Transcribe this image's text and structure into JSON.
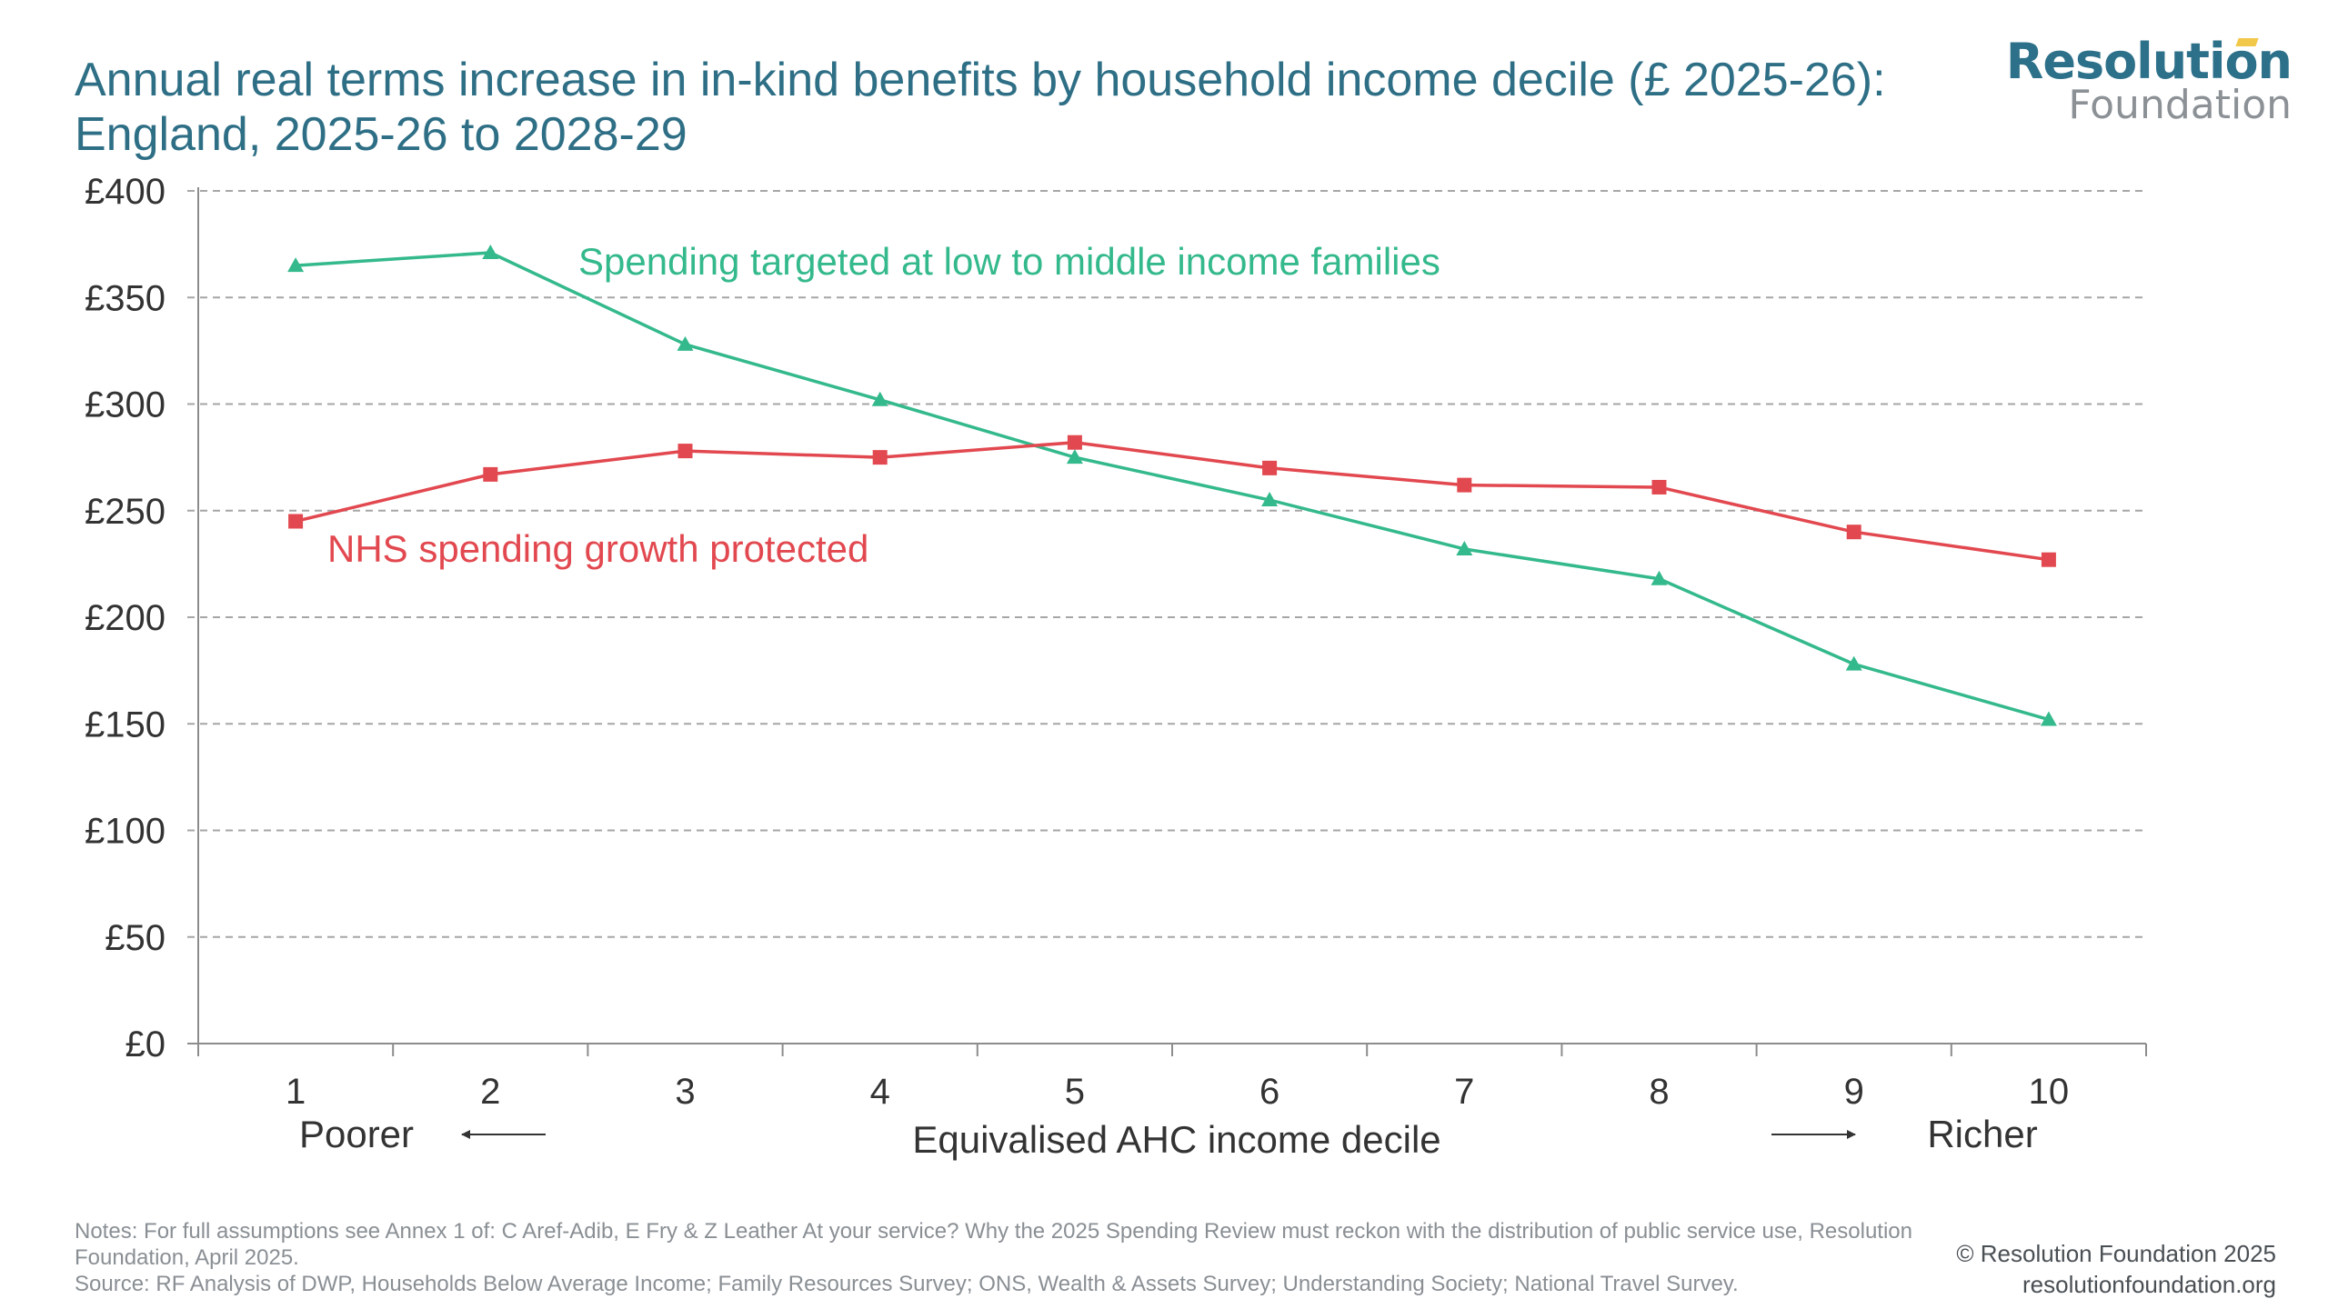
{
  "title": "Annual real terms increase in in-kind benefits by household income decile (£ 2025-26): England, 2025-26 to 2028-29",
  "logo": {
    "line1": "Resolution",
    "line2": "Foundation"
  },
  "chart_data": {
    "type": "line",
    "title": "Annual real terms increase in in-kind benefits by household income decile (£ 2025-26): England, 2025-26 to 2028-29",
    "xlabel": "Equivalised AHC income decile",
    "ylabel": "",
    "x": [
      1,
      2,
      3,
      4,
      5,
      6,
      7,
      8,
      9,
      10
    ],
    "x_tick_labels": [
      "1",
      "2",
      "3",
      "4",
      "5",
      "6",
      "7",
      "8",
      "9",
      "10"
    ],
    "ylim": [
      0,
      400
    ],
    "y_ticks": [
      0,
      50,
      100,
      150,
      200,
      250,
      300,
      350,
      400
    ],
    "y_tick_labels": [
      "£0",
      "£50",
      "£100",
      "£150",
      "£200",
      "£250",
      "£300",
      "£350",
      "£400"
    ],
    "grid": "horizontal dashed",
    "axis_annotations": {
      "left": "Poorer",
      "right": "Richer"
    },
    "series": [
      {
        "name": "Spending targeted at low to middle income families",
        "color": "#34b98c",
        "marker": "triangle",
        "values": [
          365,
          371,
          328,
          302,
          275,
          255,
          232,
          218,
          178,
          152
        ]
      },
      {
        "name": "NHS spending growth protected",
        "color": "#e2484f",
        "marker": "square",
        "values": [
          245,
          267,
          278,
          275,
          282,
          270,
          262,
          261,
          240,
          227
        ]
      }
    ]
  },
  "notes": {
    "notes_text": "Notes: For full assumptions see Annex 1 of: C Aref-Adib, E Fry & Z Leather At your service? Why the 2025 Spending Review must reckon with the distribution of public service use, Resolution Foundation, April 2025.",
    "source_text": "Source: RF Analysis of DWP, Households Below Average Income; Family Resources Survey; ONS, Wealth & Assets Survey; Understanding Society; National Travel Survey."
  },
  "copyright": {
    "line1": "© Resolution Foundation 2025",
    "line2": "resolutionfoundation.org"
  },
  "colors": {
    "title": "#2e6f86",
    "axis": "#8c8c8c",
    "grid": "#a6a6a6",
    "text": "#333333"
  }
}
